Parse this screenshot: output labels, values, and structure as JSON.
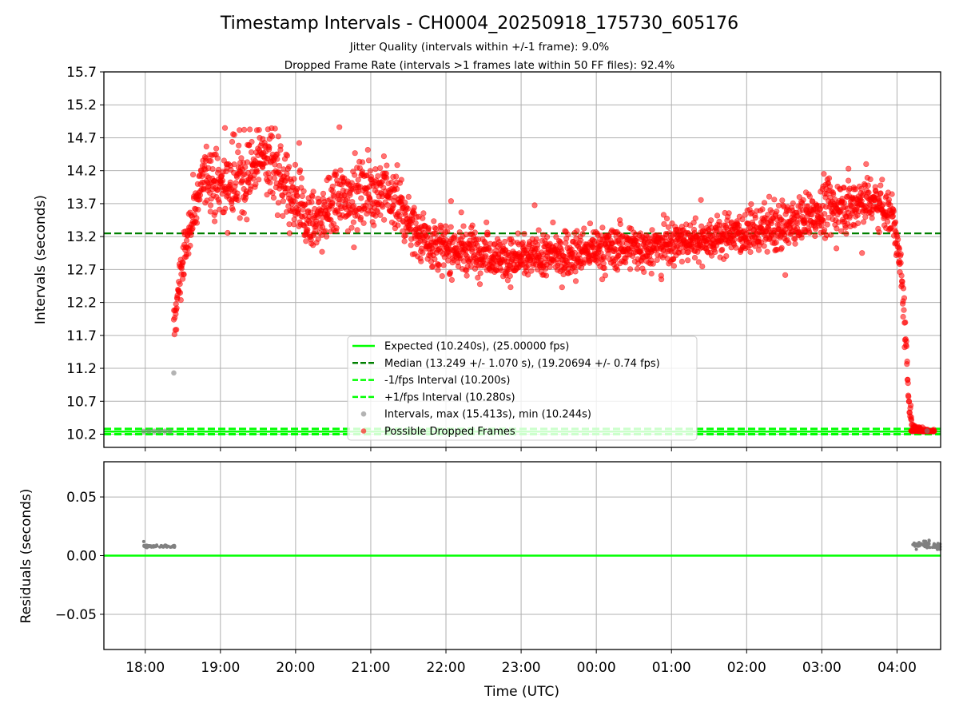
{
  "chart_data": [
    {
      "type": "scatter",
      "panel": "top",
      "title": "Timestamp Intervals - CH0004_20250918_175730_605176",
      "subtitles": [
        "Jitter Quality (intervals within +/-1 frame): 9.0%",
        "Dropped Frame Rate (intervals >1 frames late within 50 FF files): 92.4%"
      ],
      "xlabel": "",
      "ylabel": "Intervals (seconds)",
      "xlim_hours": [
        17.45,
        28.58
      ],
      "ylim": [
        10.0,
        15.7
      ],
      "yticks": [
        10.2,
        10.7,
        11.2,
        11.7,
        12.2,
        12.7,
        13.2,
        13.7,
        14.2,
        14.7,
        15.2,
        15.7
      ],
      "ytick_labels": [
        "10.2",
        "10.7",
        "11.2",
        "11.7",
        "12.2",
        "12.7",
        "13.2",
        "13.7",
        "14.2",
        "14.7",
        "15.2",
        "15.7"
      ],
      "grid": true,
      "lines": [
        {
          "name": "expected",
          "y": 10.24,
          "color": "#00ff00",
          "style": "solid"
        },
        {
          "name": "median",
          "y": 13.249,
          "color": "#008000",
          "style": "dashed"
        },
        {
          "name": "minus_fps",
          "y": 10.2,
          "color": "#00ff00",
          "style": "dashed"
        },
        {
          "name": "plus_fps",
          "y": 10.28,
          "color": "#00ff00",
          "style": "dashed"
        }
      ],
      "normal_intervals": {
        "color": "#808080",
        "points": [
          [
            17.98,
            10.245
          ],
          [
            18.05,
            10.245
          ],
          [
            18.12,
            10.246
          ],
          [
            18.19,
            10.245
          ],
          [
            18.26,
            10.246
          ],
          [
            18.33,
            10.245
          ],
          [
            18.38,
            11.13
          ],
          [
            28.2,
            10.25
          ],
          [
            28.3,
            10.252
          ],
          [
            28.4,
            10.25
          ]
        ]
      },
      "dropped_frames_profile": {
        "color": "#ff0000",
        "note": "approximate trend of the dense cloud of possible dropped frames (hour, seconds, spread)",
        "points": [
          [
            18.38,
            11.8,
            0.25
          ],
          [
            18.45,
            12.5,
            0.3
          ],
          [
            18.55,
            13.1,
            0.3
          ],
          [
            18.65,
            13.6,
            0.35
          ],
          [
            18.8,
            14.2,
            0.45
          ],
          [
            18.95,
            14.0,
            0.5
          ],
          [
            19.15,
            14.0,
            0.5
          ],
          [
            19.35,
            14.1,
            0.5
          ],
          [
            19.55,
            14.5,
            0.45
          ],
          [
            19.75,
            14.2,
            0.55
          ],
          [
            19.9,
            13.8,
            0.55
          ],
          [
            20.05,
            13.6,
            0.5
          ],
          [
            20.2,
            13.4,
            0.45
          ],
          [
            20.4,
            13.6,
            0.45
          ],
          [
            20.6,
            13.8,
            0.45
          ],
          [
            20.8,
            13.8,
            0.45
          ],
          [
            21.0,
            13.9,
            0.45
          ],
          [
            21.2,
            13.9,
            0.45
          ],
          [
            21.4,
            13.6,
            0.45
          ],
          [
            21.6,
            13.3,
            0.4
          ],
          [
            21.8,
            13.1,
            0.35
          ],
          [
            22.0,
            13.0,
            0.35
          ],
          [
            22.3,
            13.0,
            0.35
          ],
          [
            22.6,
            12.95,
            0.3
          ],
          [
            22.9,
            12.85,
            0.3
          ],
          [
            23.2,
            12.9,
            0.3
          ],
          [
            23.5,
            12.9,
            0.3
          ],
          [
            23.8,
            12.95,
            0.3
          ],
          [
            24.1,
            13.0,
            0.3
          ],
          [
            24.4,
            13.05,
            0.3
          ],
          [
            24.7,
            13.05,
            0.3
          ],
          [
            25.0,
            13.1,
            0.3
          ],
          [
            25.3,
            13.15,
            0.3
          ],
          [
            25.6,
            13.2,
            0.3
          ],
          [
            25.9,
            13.25,
            0.3
          ],
          [
            26.2,
            13.3,
            0.3
          ],
          [
            26.5,
            13.35,
            0.35
          ],
          [
            26.8,
            13.5,
            0.35
          ],
          [
            27.1,
            13.65,
            0.4
          ],
          [
            27.4,
            13.7,
            0.4
          ],
          [
            27.6,
            13.75,
            0.4
          ],
          [
            27.8,
            13.7,
            0.35
          ],
          [
            27.95,
            13.5,
            0.3
          ],
          [
            28.0,
            13.1,
            0.25
          ],
          [
            28.05,
            12.7,
            0.25
          ],
          [
            28.08,
            12.2,
            0.3
          ],
          [
            28.12,
            11.5,
            0.35
          ],
          [
            28.15,
            10.9,
            0.3
          ],
          [
            28.2,
            10.3,
            0.06
          ],
          [
            28.35,
            10.25,
            0.03
          ],
          [
            28.5,
            10.25,
            0.03
          ]
        ]
      },
      "legend": {
        "location": "lower center",
        "entries": [
          {
            "label": "Expected (10.240s), (25.00000 fps)",
            "marker": "line",
            "color": "#00ff00"
          },
          {
            "label": "Median (13.249 +/- 1.070 s), (19.20694 +/- 0.74 fps)",
            "marker": "dashed",
            "color": "#008000"
          },
          {
            "label": "-1/fps Interval (10.200s)",
            "marker": "dashed",
            "color": "#00ff00"
          },
          {
            "label": "+1/fps Interval (10.280s)",
            "marker": "dashed",
            "color": "#00ff00"
          },
          {
            "label": "Intervals, max (15.413s), min (10.244s)",
            "marker": "dot",
            "color": "#808080"
          },
          {
            "label": "Possible Dropped Frames",
            "marker": "dot",
            "color": "#ff0000"
          }
        ]
      }
    },
    {
      "type": "scatter",
      "panel": "bottom",
      "xlabel": "Time (UTC)",
      "ylabel": "Residuals (seconds)",
      "xlim_hours": [
        17.45,
        28.58
      ],
      "ylim": [
        -0.08,
        0.08
      ],
      "yticks": [
        -0.05,
        0.0,
        0.05
      ],
      "ytick_labels": [
        "−0.05",
        "0.00",
        "0.05"
      ],
      "xtick_hours": [
        18,
        19,
        20,
        21,
        22,
        23,
        24,
        25,
        26,
        27,
        28
      ],
      "xtick_labels": [
        "18:00",
        "19:00",
        "20:00",
        "21:00",
        "22:00",
        "23:00",
        "00:00",
        "01:00",
        "02:00",
        "03:00",
        "04:00"
      ],
      "grid": true,
      "zero_line": {
        "y": 0.0,
        "color": "#00ff00"
      },
      "residual_clusters": [
        {
          "x_range": [
            17.98,
            18.4
          ],
          "y_center": 0.008,
          "spread": 0.001,
          "outlier": [
            17.98,
            0.012
          ]
        },
        {
          "x_range": [
            28.2,
            28.58
          ],
          "y_center": 0.009,
          "spread": 0.004
        }
      ],
      "residual_color": "#808080"
    }
  ]
}
